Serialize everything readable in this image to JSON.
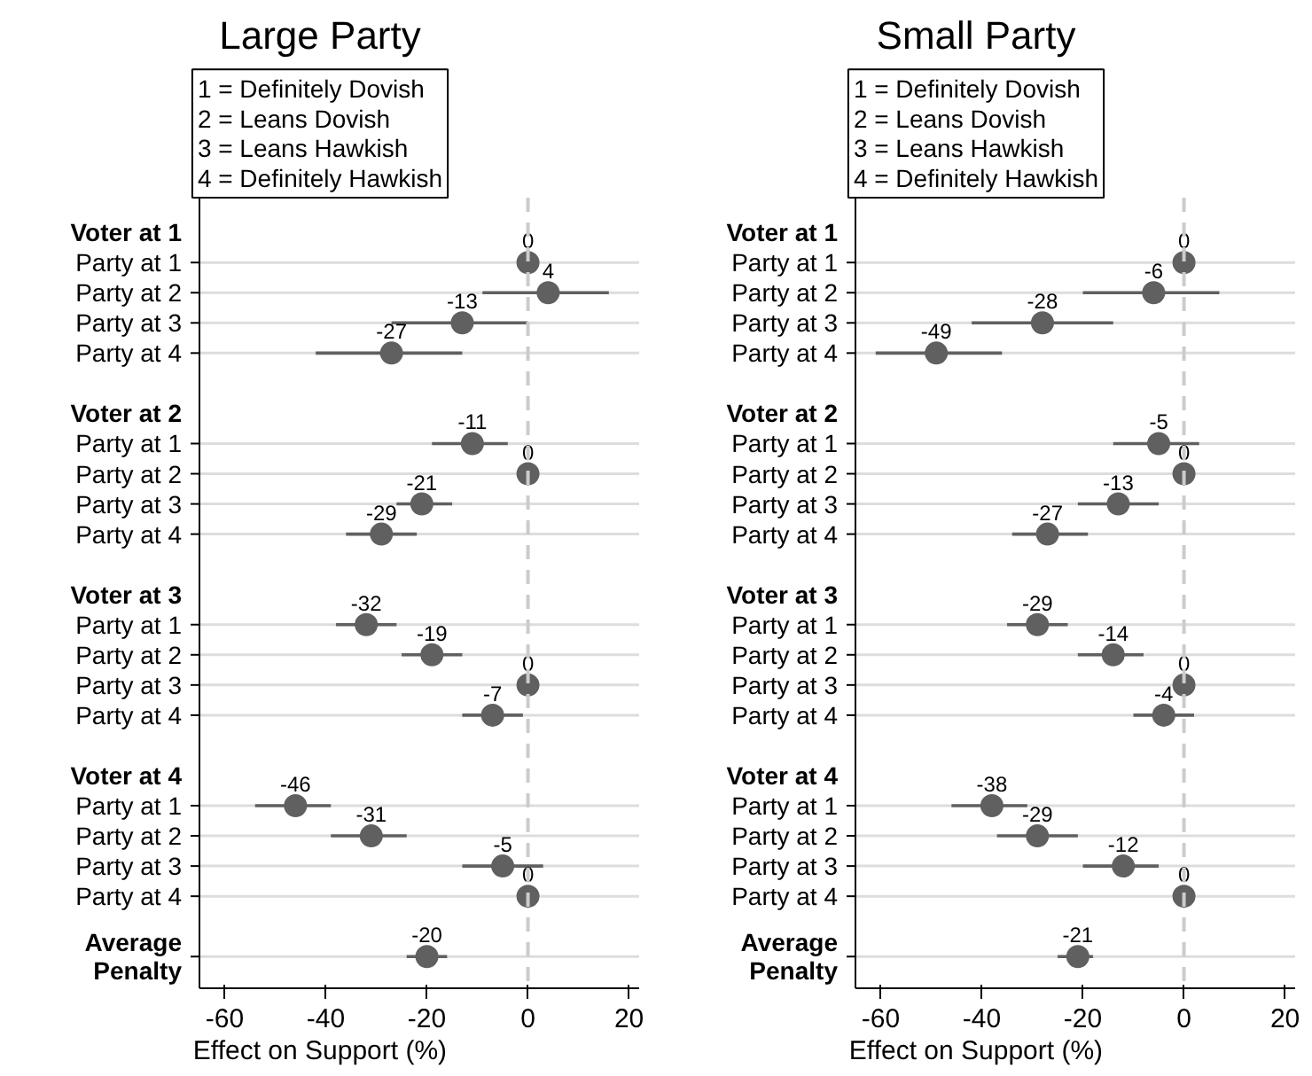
{
  "chart_data": [
    {
      "type": "scatter",
      "orientation": "horizontal",
      "title": "Large Party",
      "annotations": [
        "1 = Definitely Dovish\n2 = Leans Dovish\n3 = Leans Hawkish\n4 = Definitely Hawkish"
      ],
      "xlabel": "Effect on Support (%)",
      "xlim": [
        -65,
        22
      ],
      "xticks": [
        -60,
        -40,
        -20,
        0,
        20
      ],
      "grid": "y",
      "marker": "circle",
      "color": "#606060",
      "data_labels": true,
      "ref_lines": [
        {
          "axis": "x",
          "value": 0,
          "color": "#cccccc",
          "line_style": "dashed"
        }
      ],
      "categories": [
        "Voter at 1",
        "Party at 1",
        "Party at 2",
        "Party at 3",
        "Party at 4",
        null,
        "Voter at 2",
        "Party at 1",
        "Party at 2",
        "Party at 3",
        "Party at 4",
        null,
        "Voter at 3",
        "Party at 1",
        "Party at 2",
        "Party at 3",
        "Party at 4",
        null,
        "Voter at 4",
        "Party at 1",
        "Party at 2",
        "Party at 3",
        "Party at 4",
        null,
        "Average\nPenalty"
      ],
      "values": [
        null,
        0,
        4,
        -13,
        -27,
        null,
        null,
        -11,
        0,
        -21,
        -29,
        null,
        null,
        -32,
        -19,
        0,
        -7,
        null,
        null,
        -46,
        -31,
        -5,
        0,
        null,
        -20
      ],
      "errors": [
        null,
        null,
        [
          -9,
          16
        ],
        [
          -27,
          0
        ],
        [
          -42,
          -13
        ],
        null,
        null,
        [
          -19,
          -4
        ],
        null,
        [
          -26,
          -15
        ],
        [
          -36,
          -22
        ],
        null,
        null,
        [
          -38,
          -26
        ],
        [
          -25,
          -13
        ],
        null,
        [
          -13,
          -1
        ],
        null,
        null,
        [
          -54,
          -39
        ],
        [
          -39,
          -24
        ],
        [
          -13,
          3
        ],
        null,
        null,
        [
          -24,
          -16
        ]
      ]
    },
    {
      "type": "scatter",
      "orientation": "horizontal",
      "title": "Small Party",
      "annotations": [
        "1 = Definitely Dovish\n2 = Leans Dovish\n3 = Leans Hawkish\n4 = Definitely Hawkish"
      ],
      "xlabel": "Effect on Support (%)",
      "xlim": [
        -65,
        22
      ],
      "xticks": [
        -60,
        -40,
        -20,
        0,
        20
      ],
      "grid": "y",
      "marker": "circle",
      "color": "#606060",
      "data_labels": true,
      "ref_lines": [
        {
          "axis": "x",
          "value": 0,
          "color": "#cccccc",
          "line_style": "dashed"
        }
      ],
      "categories": [
        "Voter at 1",
        "Party at 1",
        "Party at 2",
        "Party at 3",
        "Party at 4",
        null,
        "Voter at 2",
        "Party at 1",
        "Party at 2",
        "Party at 3",
        "Party at 4",
        null,
        "Voter at 3",
        "Party at 1",
        "Party at 2",
        "Party at 3",
        "Party at 4",
        null,
        "Voter at 4",
        "Party at 1",
        "Party at 2",
        "Party at 3",
        "Party at 4",
        null,
        "Average\nPenalty"
      ],
      "values": [
        null,
        0,
        -6,
        -28,
        -49,
        null,
        null,
        -5,
        0,
        -13,
        -27,
        null,
        null,
        -29,
        -14,
        0,
        -4,
        null,
        null,
        -38,
        -29,
        -12,
        0,
        null,
        -21
      ],
      "errors": [
        null,
        null,
        [
          -20,
          7
        ],
        [
          -42,
          -14
        ],
        [
          -61,
          -36
        ],
        null,
        null,
        [
          -14,
          3
        ],
        null,
        [
          -21,
          -5
        ],
        [
          -34,
          -19
        ],
        null,
        null,
        [
          -35,
          -23
        ],
        [
          -21,
          -8
        ],
        null,
        [
          -10,
          2
        ],
        null,
        null,
        [
          -46,
          -31
        ],
        [
          -37,
          -21
        ],
        [
          -20,
          -5
        ],
        null,
        null,
        [
          -25,
          -18
        ]
      ]
    }
  ]
}
